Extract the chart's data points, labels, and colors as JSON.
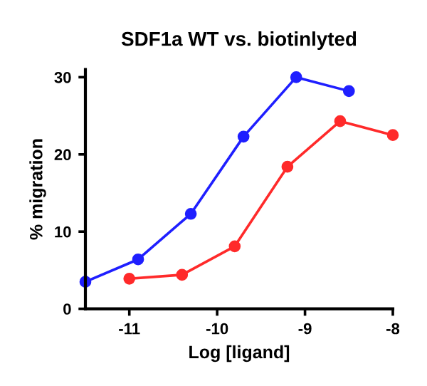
{
  "chart_data": {
    "type": "line",
    "title": "SDF1a WT vs. biotinlyted",
    "xlabel": "Log [ligand]",
    "ylabel": "% migration",
    "series": [
      {
        "color": "#1f1fff",
        "x": [
          -11.5,
          -10.9,
          -10.3,
          -9.7,
          -9.1,
          -8.5
        ],
        "values": [
          3.5,
          6.4,
          12.3,
          22.3,
          30.0,
          28.2
        ]
      },
      {
        "color": "#ff2a2a",
        "x": [
          -11.0,
          -10.4,
          -9.8,
          -9.2,
          -8.6,
          -8.0
        ],
        "values": [
          3.9,
          4.4,
          8.1,
          18.4,
          24.3,
          22.5
        ]
      }
    ],
    "xlim": [
      -11.5,
      -8
    ],
    "xticks": [
      -11,
      -10,
      -9,
      -8
    ],
    "ylim": [
      0,
      31
    ],
    "yticks": [
      0,
      10,
      20,
      30
    ],
    "marker": "circle",
    "line_style": "solid",
    "grid": false,
    "legend": false
  }
}
